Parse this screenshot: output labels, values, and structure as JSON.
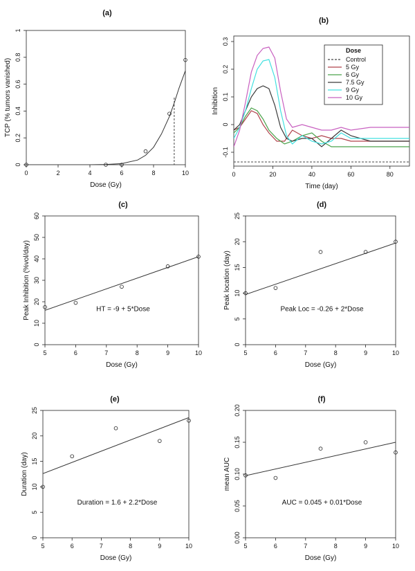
{
  "chart_data": [
    {
      "panel": "(a)",
      "type": "scatter",
      "xlabel": "Dose (Gy)",
      "ylabel": "TCP (% tumors vanished)",
      "xlim": [
        0,
        10
      ],
      "ylim": [
        0,
        1
      ],
      "xticks": [
        0,
        2,
        4,
        6,
        8,
        10
      ],
      "yticks": [
        0.0,
        0.2,
        0.4,
        0.6,
        0.8,
        1.0
      ],
      "points": [
        [
          0,
          0.0
        ],
        [
          5,
          0.0
        ],
        [
          6,
          0.0
        ],
        [
          7.5,
          0.1
        ],
        [
          9,
          0.38
        ],
        [
          10,
          0.78
        ]
      ],
      "fit_curve": [
        [
          0,
          0
        ],
        [
          4,
          0
        ],
        [
          5,
          0.002
        ],
        [
          6,
          0.008
        ],
        [
          7,
          0.035
        ],
        [
          7.5,
          0.07
        ],
        [
          8,
          0.13
        ],
        [
          8.5,
          0.23
        ],
        [
          9,
          0.36
        ],
        [
          9.3,
          0.46
        ],
        [
          9.6,
          0.57
        ],
        [
          10,
          0.7
        ]
      ],
      "dashed_marker": {
        "x": 9.3,
        "y": 0.5
      }
    },
    {
      "panel": "(b)",
      "type": "line",
      "xlabel": "Time (day)",
      "ylabel": "Inhibition",
      "xlim": [
        0,
        90
      ],
      "ylim": [
        -0.15,
        0.32
      ],
      "xticks": [
        0,
        20,
        40,
        60,
        80
      ],
      "yticks": [
        -0.1,
        0.0,
        0.1,
        0.2,
        0.3
      ],
      "legend": {
        "title": "Dose",
        "position": "top-right"
      },
      "series": [
        {
          "name": "Control",
          "color": "#444444",
          "dashed": true,
          "x": [
            0,
            90
          ],
          "y": [
            -0.135,
            -0.135
          ]
        },
        {
          "name": "5 Gy",
          "color": "#b0414b",
          "x": [
            0,
            3,
            6,
            9,
            12,
            15,
            18,
            22,
            26,
            30,
            35,
            40,
            45,
            50,
            55,
            60,
            70,
            80,
            90
          ],
          "y": [
            -0.02,
            -0.01,
            0.02,
            0.05,
            0.04,
            0.0,
            -0.03,
            -0.06,
            -0.06,
            -0.02,
            -0.04,
            -0.05,
            -0.04,
            -0.05,
            -0.05,
            -0.06,
            -0.06,
            -0.06,
            -0.06
          ]
        },
        {
          "name": "6 Gy",
          "color": "#4aa24a",
          "x": [
            0,
            3,
            6,
            9,
            12,
            15,
            18,
            22,
            26,
            30,
            35,
            40,
            45,
            50,
            55,
            60,
            70,
            80,
            90
          ],
          "y": [
            -0.03,
            -0.01,
            0.03,
            0.06,
            0.05,
            0.02,
            -0.02,
            -0.05,
            -0.07,
            -0.06,
            -0.04,
            -0.03,
            -0.06,
            -0.08,
            -0.08,
            -0.08,
            -0.08,
            -0.08,
            -0.08
          ]
        },
        {
          "name": "7.5 Gy",
          "color": "#3a3a3a",
          "x": [
            0,
            3,
            6,
            9,
            12,
            15,
            18,
            21,
            24,
            27,
            30,
            35,
            40,
            45,
            50,
            55,
            60,
            70,
            80,
            90
          ],
          "y": [
            -0.02,
            0.0,
            0.05,
            0.1,
            0.13,
            0.14,
            0.13,
            0.07,
            -0.01,
            -0.05,
            -0.06,
            -0.05,
            -0.05,
            -0.08,
            -0.05,
            -0.02,
            -0.04,
            -0.06,
            -0.06,
            -0.06
          ]
        },
        {
          "name": "9 Gy",
          "color": "#40e0e0",
          "x": [
            0,
            3,
            6,
            9,
            12,
            15,
            18,
            21,
            24,
            27,
            30,
            35,
            40,
            45,
            50,
            55,
            60,
            70,
            80,
            90
          ],
          "y": [
            -0.05,
            -0.01,
            0.05,
            0.13,
            0.2,
            0.23,
            0.235,
            0.17,
            0.05,
            -0.04,
            -0.07,
            -0.04,
            -0.06,
            -0.07,
            -0.06,
            -0.03,
            -0.05,
            -0.05,
            -0.05,
            -0.05
          ]
        },
        {
          "name": "10 Gy",
          "color": "#c860c0",
          "x": [
            0,
            3,
            6,
            9,
            12,
            15,
            18,
            21,
            24,
            27,
            30,
            35,
            40,
            45,
            50,
            55,
            60,
            70,
            80,
            90
          ],
          "y": [
            -0.08,
            -0.02,
            0.08,
            0.19,
            0.25,
            0.275,
            0.28,
            0.24,
            0.12,
            0.02,
            -0.01,
            0.0,
            -0.01,
            -0.02,
            -0.02,
            -0.01,
            -0.02,
            -0.01,
            -0.01,
            -0.01
          ]
        }
      ]
    },
    {
      "panel": "(c)",
      "type": "scatter",
      "xlabel": "Dose (Gy)",
      "ylabel": "Peak Inhibition (%vol/day)",
      "xlim": [
        5,
        10
      ],
      "ylim": [
        0,
        60
      ],
      "xticks": [
        5,
        6,
        7,
        8,
        9,
        10
      ],
      "yticks": [
        0,
        10,
        20,
        30,
        40,
        50,
        60
      ],
      "points": [
        [
          5,
          17.5
        ],
        [
          6,
          19.5
        ],
        [
          7.5,
          27
        ],
        [
          9,
          36.5
        ],
        [
          10,
          41
        ]
      ],
      "fit": {
        "intercept": -9,
        "slope": 5
      },
      "annotation": "HT = -9 + 5*Dose"
    },
    {
      "panel": "(d)",
      "type": "scatter",
      "xlabel": "Dose (Gy)",
      "ylabel": "Peak location (day)",
      "xlim": [
        5,
        10
      ],
      "ylim": [
        0,
        25
      ],
      "xticks": [
        5,
        6,
        7,
        8,
        9,
        10
      ],
      "yticks": [
        0,
        5,
        10,
        15,
        20,
        25
      ],
      "points": [
        [
          5,
          10
        ],
        [
          6,
          11
        ],
        [
          7.5,
          18
        ],
        [
          9,
          18
        ],
        [
          10,
          20
        ]
      ],
      "fit": {
        "intercept": -0.26,
        "slope": 2
      },
      "annotation": "Peak Loc = -0.26 + 2*Dose"
    },
    {
      "panel": "(e)",
      "type": "scatter",
      "xlabel": "Dose (Gy)",
      "ylabel": "Duration (day)",
      "xlim": [
        5,
        10
      ],
      "ylim": [
        0,
        25
      ],
      "xticks": [
        5,
        6,
        7,
        8,
        9,
        10
      ],
      "yticks": [
        0,
        5,
        10,
        15,
        20,
        25
      ],
      "points": [
        [
          5,
          10
        ],
        [
          6,
          16
        ],
        [
          7.5,
          21.5
        ],
        [
          9,
          19
        ],
        [
          10,
          23
        ]
      ],
      "fit": {
        "intercept": 1.6,
        "slope": 2.2
      },
      "annotation": "Duration = 1.6 + 2.2*Dose"
    },
    {
      "panel": "(f)",
      "type": "scatter",
      "xlabel": "Dose (Gy)",
      "ylabel": "mean AUC",
      "xlim": [
        5,
        10
      ],
      "ylim": [
        0,
        0.2
      ],
      "xticks": [
        5,
        6,
        7,
        8,
        9,
        10
      ],
      "yticks": [
        0.0,
        0.05,
        0.1,
        0.15,
        0.2
      ],
      "ytick_labels": [
        "0.00",
        "0.05",
        "0.10",
        "0.15",
        "0.20"
      ],
      "points": [
        [
          5,
          0.098
        ],
        [
          6,
          0.094
        ],
        [
          7.5,
          0.14
        ],
        [
          9,
          0.15
        ],
        [
          10,
          0.134
        ]
      ],
      "fit": {
        "intercept": 0.045,
        "slope": 0.0105
      },
      "annotation": "AUC = 0.045 + 0.01*Dose"
    }
  ]
}
